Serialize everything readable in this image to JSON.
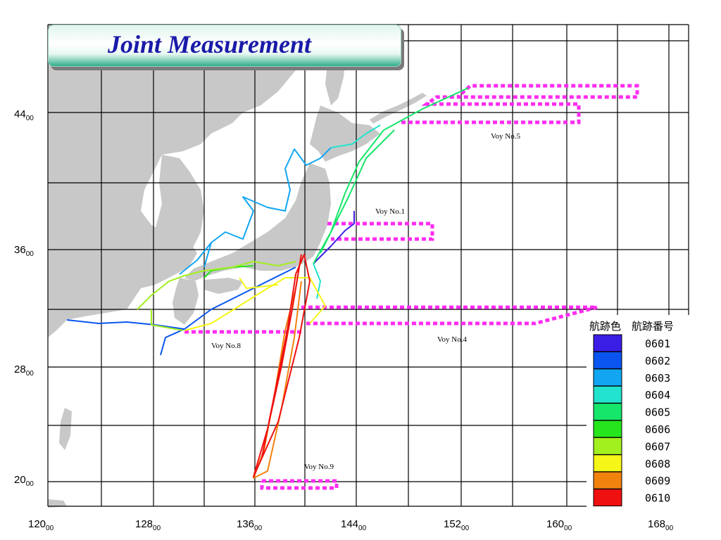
{
  "title": "Joint Measurement",
  "x_ticks": [
    {
      "label": "120",
      "sub": "00"
    },
    {
      "label": "128",
      "sub": "00"
    },
    {
      "label": "136",
      "sub": "00"
    },
    {
      "label": "144",
      "sub": "00"
    },
    {
      "label": "152",
      "sub": "00"
    },
    {
      "label": "160",
      "sub": "00"
    },
    {
      "label": "168",
      "sub": "00"
    }
  ],
  "y_ticks": [
    {
      "label": "44",
      "sub": "00"
    },
    {
      "label": "36",
      "sub": "00"
    },
    {
      "label": "28",
      "sub": "00"
    },
    {
      "label": "20",
      "sub": "00"
    }
  ],
  "voyage_labels": [
    "Voy No.1",
    "Voy No.4",
    "Voy No.5",
    "Voy No.8",
    "Voy No.9"
  ],
  "legend": {
    "col1": "航跡色",
    "col2": "航跡番号",
    "items": [
      {
        "code": "0601",
        "color": "#3a1ee6"
      },
      {
        "code": "0602",
        "color": "#0a55f0"
      },
      {
        "code": "0603",
        "color": "#12a6f2"
      },
      {
        "code": "0604",
        "color": "#22e3cd"
      },
      {
        "code": "0605",
        "color": "#16e66a"
      },
      {
        "code": "0606",
        "color": "#26e51c"
      },
      {
        "code": "0607",
        "color": "#a2f01e"
      },
      {
        "code": "0608",
        "color": "#f6f618"
      },
      {
        "code": "0609",
        "color": "#f2820e"
      },
      {
        "code": "0610",
        "color": "#ef1010"
      }
    ]
  },
  "colors": {
    "land": "#c8c8c8",
    "grid": "#000000",
    "planned_route": "#ff2cf2"
  }
}
